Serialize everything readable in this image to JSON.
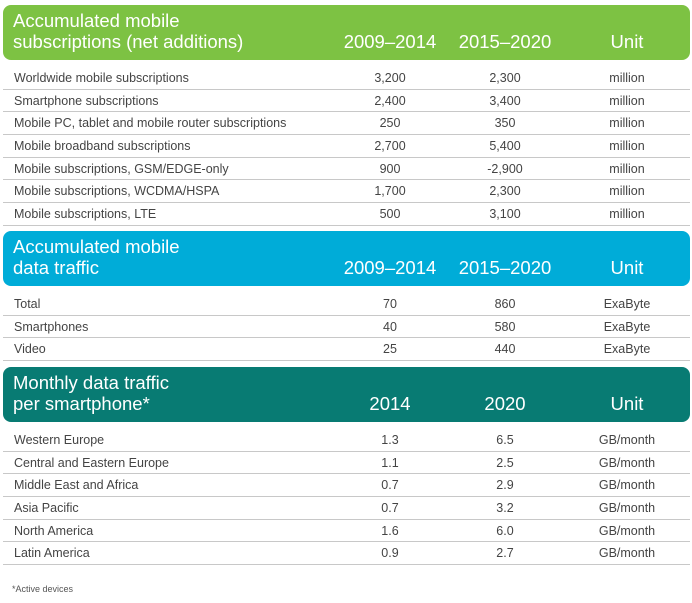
{
  "colors": {
    "green": "#7dc243",
    "blue": "#00acd8",
    "teal": "#087b73"
  },
  "sections": [
    {
      "title_line1": "Accumulated mobile",
      "title_line2": "subscriptions (net additions)",
      "col1": "2009–2014",
      "col2": "2015–2020",
      "unit": "Unit",
      "rows": [
        {
          "label": "Worldwide mobile subscriptions",
          "v1": "3,200",
          "v2": "2,300",
          "unit": "million"
        },
        {
          "label": "Smartphone subscriptions",
          "v1": "2,400",
          "v2": "3,400",
          "unit": "million"
        },
        {
          "label": "Mobile PC, tablet and mobile router subscriptions",
          "v1": "250",
          "v2": "350",
          "unit": "million"
        },
        {
          "label": "Mobile broadband subscriptions",
          "v1": "2,700",
          "v2": "5,400",
          "unit": "million"
        },
        {
          "label": "Mobile subscriptions, GSM/EDGE-only",
          "v1": "900",
          "v2": "-2,900",
          "unit": "million"
        },
        {
          "label": "Mobile subscriptions, WCDMA/HSPA",
          "v1": "1,700",
          "v2": "2,300",
          "unit": "million"
        },
        {
          "label": "Mobile subscriptions, LTE",
          "v1": "500",
          "v2": "3,100",
          "unit": "million"
        }
      ]
    },
    {
      "title_line1": "Accumulated mobile",
      "title_line2": "data traffic",
      "col1": "2009–2014",
      "col2": "2015–2020",
      "unit": "Unit",
      "rows": [
        {
          "label": "Total",
          "v1": "70",
          "v2": "860",
          "unit": "ExaByte"
        },
        {
          "label": "Smartphones",
          "v1": "40",
          "v2": "580",
          "unit": "ExaByte"
        },
        {
          "label": "Video",
          "v1": "25",
          "v2": "440",
          "unit": "ExaByte"
        }
      ]
    },
    {
      "title_line1": "Monthly data traffic",
      "title_line2": "per smartphone*",
      "col1": "2014",
      "col2": "2020",
      "unit": "Unit",
      "rows": [
        {
          "label": "Western Europe",
          "v1": "1.3",
          "v2": "6.5",
          "unit": "GB/month"
        },
        {
          "label": "Central and Eastern Europe",
          "v1": "1.1",
          "v2": "2.5",
          "unit": "GB/month"
        },
        {
          "label": "Middle East and Africa",
          "v1": "0.7",
          "v2": "2.9",
          "unit": "GB/month"
        },
        {
          "label": "Asia Pacific",
          "v1": "0.7",
          "v2": "3.2",
          "unit": "GB/month"
        },
        {
          "label": "North America",
          "v1": "1.6",
          "v2": "6.0",
          "unit": "GB/month"
        },
        {
          "label": "Latin America",
          "v1": "0.9",
          "v2": "2.7",
          "unit": "GB/month"
        }
      ]
    }
  ],
  "footnote": "*Active devices"
}
